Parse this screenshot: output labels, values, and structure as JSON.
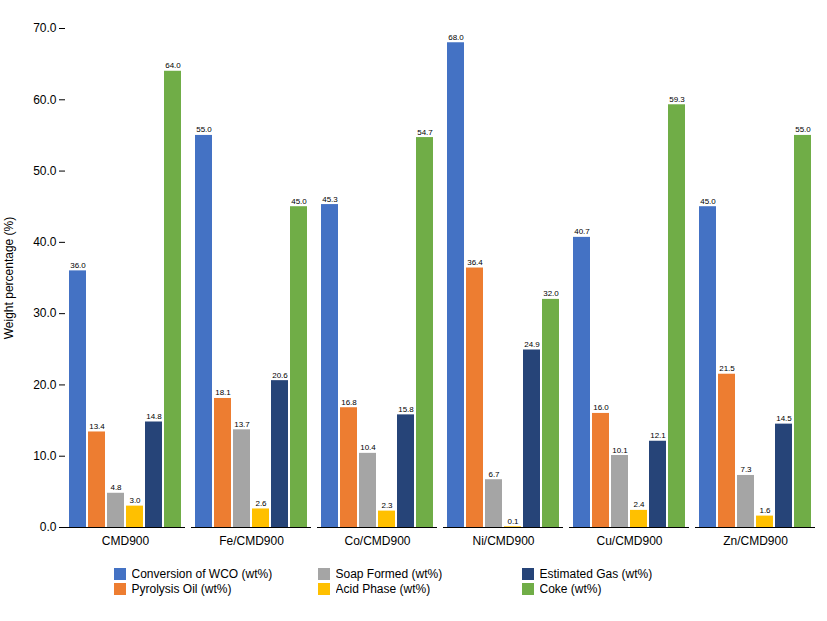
{
  "chart_data": {
    "type": "bar",
    "categories": [
      "CMD900",
      "Fe/CMD900",
      "Co/CMD900",
      "Ni/CMD900",
      "Cu/CMD900",
      "Zn/CMD900"
    ],
    "series": [
      {
        "name": "Conversion of WCO (wt%)",
        "color": "#4472C4",
        "values": [
          36.0,
          55.0,
          45.3,
          68.0,
          40.7,
          45.0
        ],
        "value_labels": [
          "36.0",
          "55.0",
          "45.3",
          "68.0",
          "40.7",
          "45.0"
        ]
      },
      {
        "name": "Pyrolysis Oil (wt%)",
        "color": "#ED7D31",
        "values": [
          13.4,
          18.1,
          16.8,
          36.4,
          16.0,
          21.5
        ],
        "value_labels": [
          "13.4",
          "18.1",
          "16.8",
          "36.4",
          "16.0",
          "21.5"
        ]
      },
      {
        "name": "Soap Formed (wt%)",
        "color": "#A5A5A5",
        "values": [
          4.8,
          13.7,
          10.4,
          6.7,
          10.1,
          7.3
        ],
        "value_labels": [
          "4.8",
          "13.7",
          "10.4",
          "6.7",
          "10.1",
          "7.3"
        ]
      },
      {
        "name": "Acid Phase (wt%)",
        "color": "#FFC000",
        "values": [
          3.0,
          2.6,
          2.3,
          0.1,
          2.4,
          1.6
        ],
        "value_labels": [
          "3.0",
          "2.6",
          "2.3",
          "0.1",
          "2.4",
          "1.6"
        ]
      },
      {
        "name": "Estimated Gas (wt%)",
        "color": "#264478",
        "values": [
          14.8,
          20.6,
          15.8,
          24.9,
          12.1,
          14.5
        ],
        "value_labels": [
          "14.8",
          "20.6",
          "15.8",
          "24.9",
          "12.1",
          "14.5"
        ]
      },
      {
        "name": "Coke (wt%)",
        "color": "#70AD47",
        "values": [
          64.0,
          45.0,
          54.7,
          32.0,
          59.3,
          55.0
        ],
        "value_labels": [
          "64.0",
          "45.0",
          "54.7",
          "32.0",
          "59.3",
          "55.0"
        ]
      }
    ],
    "ylabel": "Weight percentage (%)",
    "ylim": [
      0,
      70
    ],
    "yticks": [
      {
        "value": 0,
        "label": "0.0"
      },
      {
        "value": 10,
        "label": "10.0"
      },
      {
        "value": 20,
        "label": "20.0"
      },
      {
        "value": 30,
        "label": "30.0"
      },
      {
        "value": 40,
        "label": "40.0"
      },
      {
        "value": 50,
        "label": "50.0"
      },
      {
        "value": 60,
        "label": "60.0"
      },
      {
        "value": 70,
        "label": "70.0"
      }
    ],
    "grid": false,
    "legend": "bottom",
    "data_labels": true
  }
}
